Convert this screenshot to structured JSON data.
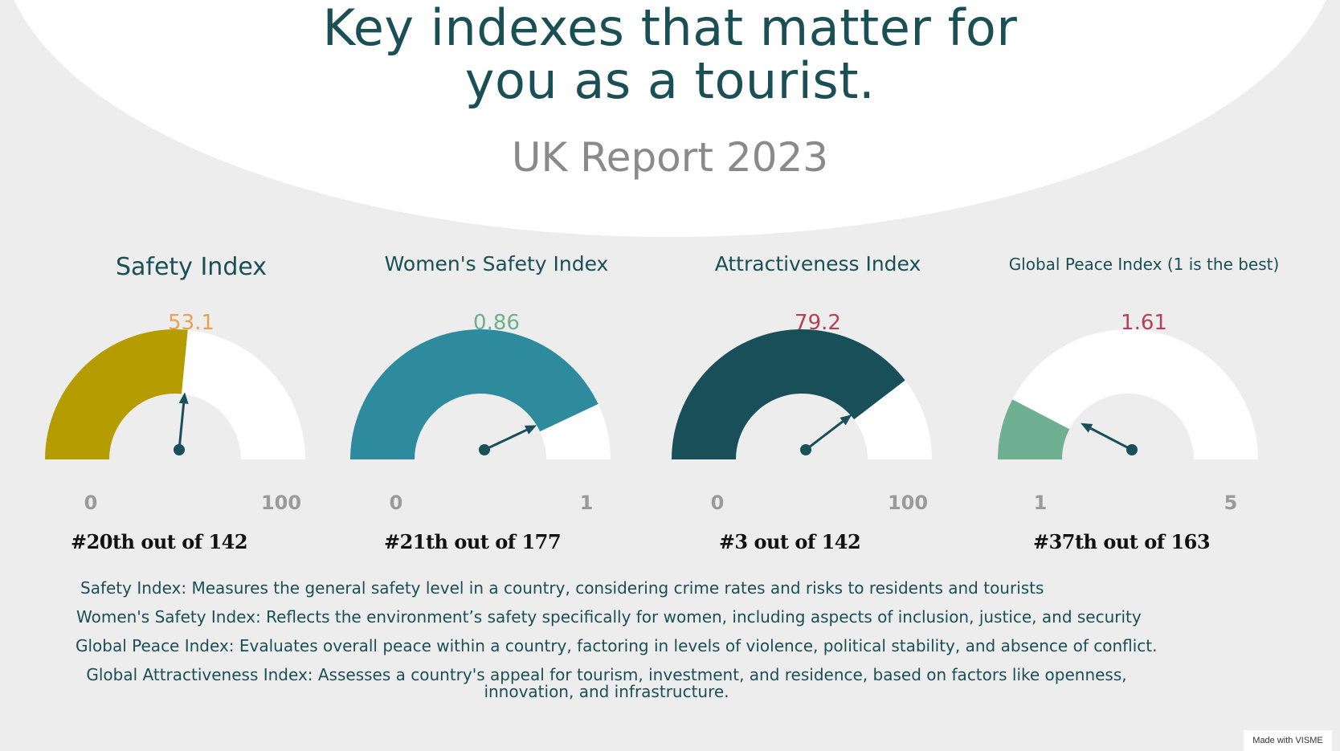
{
  "header": {
    "title_line1": "Key indexes that matter for",
    "title_line2": "you as a tourist.",
    "subtitle": "UK Report 2023"
  },
  "chart_data": [
    {
      "type": "gauge",
      "title": "Safety Index",
      "value": 53.1,
      "value_label": "53.1",
      "min": 0,
      "max": 100,
      "min_label": "0",
      "max_label": "100",
      "rank": "#20th out of 142",
      "color": "#b59c00",
      "value_color": "#e8a054"
    },
    {
      "type": "gauge",
      "title": "Women's Safety Index",
      "value": 0.86,
      "value_label": "0.86",
      "min": 0,
      "max": 1,
      "min_label": "0",
      "max_label": "1",
      "rank": "#21th out of 177",
      "color": "#2e8b9e",
      "value_color": "#6fae8e"
    },
    {
      "type": "gauge",
      "title": "Attractiveness Index",
      "value": 79.2,
      "value_label": "79.2",
      "min": 0,
      "max": 100,
      "min_label": "0",
      "max_label": "100",
      "rank": "#3 out of 142",
      "color": "#184f58",
      "value_color": "#b34055"
    },
    {
      "type": "gauge",
      "title": "Global Peace Index (1 is the best)",
      "value": 1.61,
      "value_label": "1.61",
      "min": 1,
      "max": 5,
      "min_label": "1",
      "max_label": "5",
      "rank": "#37th out of 163",
      "color": "#6faf92",
      "value_color": "#b34055"
    }
  ],
  "definitions": [
    "Safety Index: Measures the general safety level in a country, considering crime rates and risks to residents and tourists",
    "Women's Safety Index: Reflects the environment’s safety specifically for women, including aspects of inclusion, justice, and security",
    "Global Peace Index: Evaluates overall peace within a country, factoring in levels of violence, political stability, and absence of conflict.",
    "Global Attractiveness Index: Assesses a country's appeal for tourism, investment, and residence, based on factors like openness, innovation, and infrastructure."
  ],
  "footer": {
    "badge": "Made with VISME"
  },
  "colors": {
    "needle": "#184f58",
    "track": "#ffffff",
    "background": "#ededed"
  }
}
